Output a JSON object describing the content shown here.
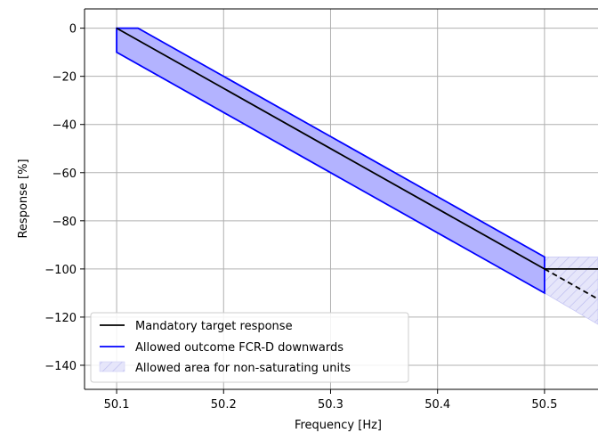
{
  "chart_data": {
    "type": "line",
    "xlabel": "Frequency [Hz]",
    "ylabel": "Response [%]",
    "xlim": [
      50.07,
      50.55
    ],
    "ylim": [
      -150,
      8
    ],
    "grid": true,
    "legend_placement": "lower-left",
    "x_ticks": [
      50.1,
      50.2,
      50.3,
      50.4,
      50.5
    ],
    "x_tick_labels": [
      "50.1",
      "50.2",
      "50.3",
      "50.4",
      "50.5"
    ],
    "y_ticks": [
      0,
      -20,
      -40,
      -60,
      -80,
      -100,
      -120,
      -140
    ],
    "y_tick_labels": [
      "0",
      "−20",
      "−40",
      "−60",
      "−80",
      "−100",
      "−120",
      "−140"
    ],
    "series": [
      {
        "name": "Mandatory target response",
        "color": "#000000",
        "style": "solid",
        "points": [
          [
            50.1,
            0
          ],
          [
            50.5,
            -100
          ],
          [
            50.55,
            -100
          ]
        ]
      },
      {
        "name": "",
        "color": "#000000",
        "style": "dashed",
        "points": [
          [
            50.5,
            -100
          ],
          [
            50.55,
            -112.5
          ]
        ]
      },
      {
        "name": "Allowed outcome FCR-D downwards",
        "color": "#0000ff",
        "fill": "#b3b3ff",
        "style": "solid",
        "polygon": [
          [
            50.1,
            0
          ],
          [
            50.12,
            0
          ],
          [
            50.5,
            -95
          ],
          [
            50.5,
            -110
          ],
          [
            50.1,
            -10
          ]
        ]
      },
      {
        "name": "Allowed area for non-saturating units",
        "color": "#c8c8f5",
        "style": "hatched",
        "polygon": [
          [
            50.5,
            -95
          ],
          [
            50.55,
            -95
          ],
          [
            50.55,
            -123
          ],
          [
            50.5,
            -110
          ]
        ]
      }
    ]
  },
  "legend": {
    "items": [
      "Mandatory target response",
      "Allowed outcome FCR-D downwards",
      "Allowed area for non-saturating units"
    ]
  }
}
